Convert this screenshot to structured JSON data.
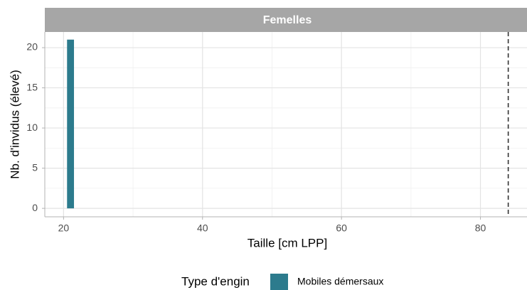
{
  "chart_data": {
    "type": "histogram",
    "facet": "Femelles",
    "xlabel": "Taille [cm LPP]",
    "ylabel": "Nb. d'invidus (élevé)",
    "bins": [
      20.5,
      21.5
    ],
    "series": [
      {
        "name": "Mobiles démersaux",
        "color": "#2c7b8d",
        "values": [
          21
        ]
      }
    ],
    "legend_title": "Type d'engin",
    "legend": "bottom",
    "vline": 84,
    "xlim": [
      17.3,
      86.7
    ],
    "xticks": [
      20,
      40,
      60,
      80
    ],
    "xminor": [
      30,
      50,
      70
    ],
    "ylim": [
      -1.05,
      21.95
    ],
    "yticks": [
      0,
      5,
      10,
      15,
      20
    ],
    "yminor": [
      2.5,
      7.5,
      12.5,
      17.5
    ],
    "grid": true
  }
}
